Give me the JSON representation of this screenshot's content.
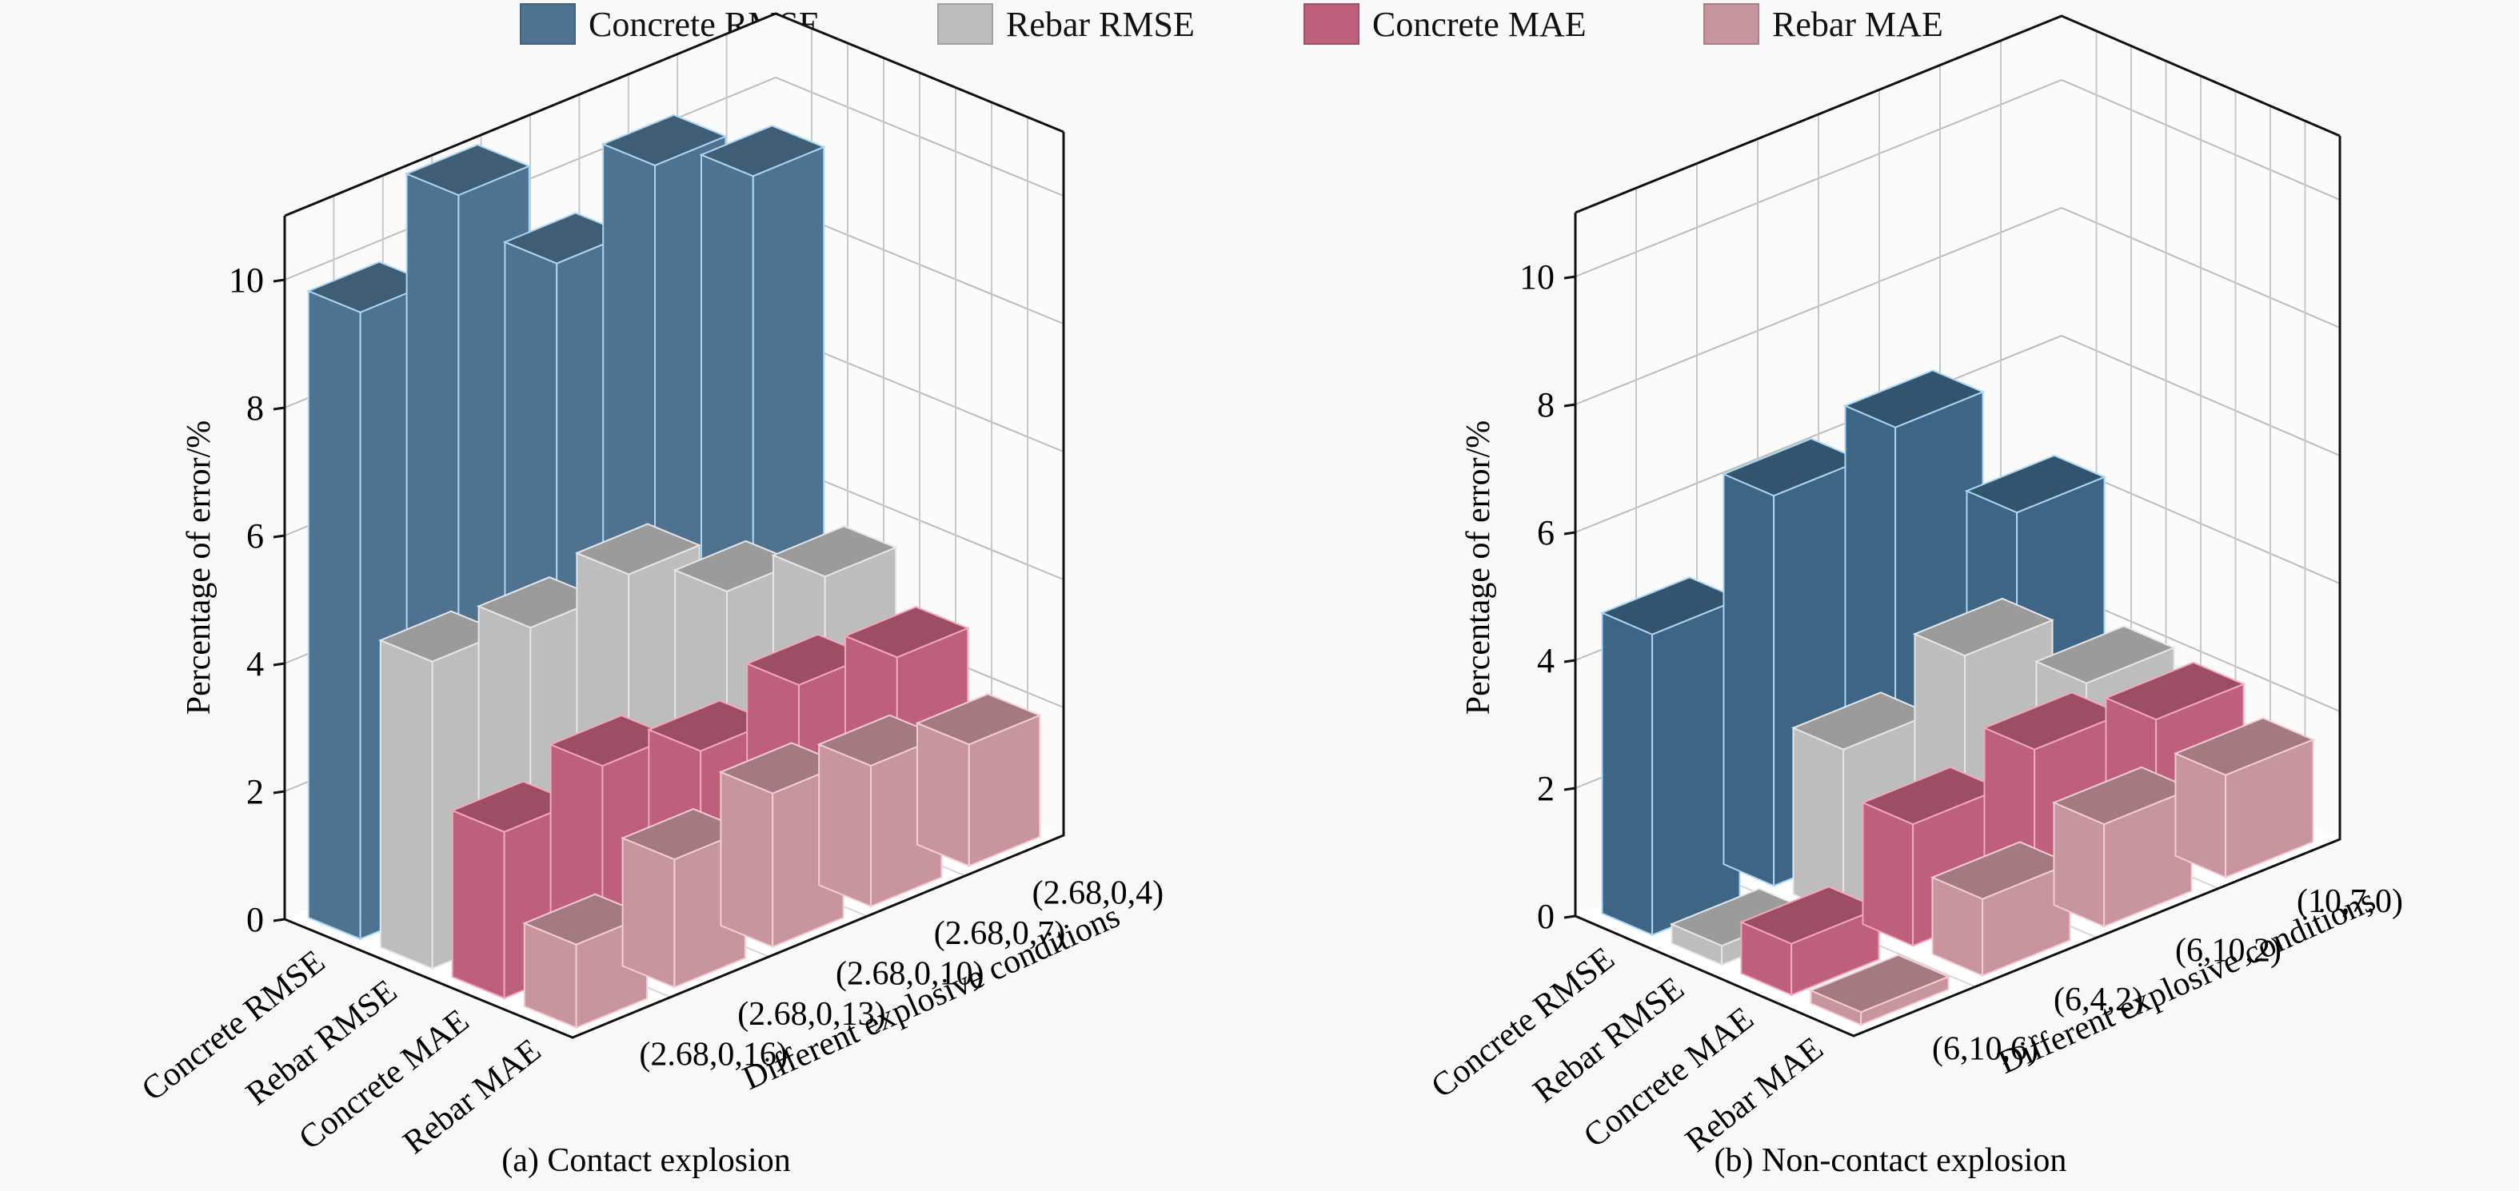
{
  "legend": [
    {
      "label": "Concrete RMSE",
      "color": "#4e7290"
    },
    {
      "label": "Rebar RMSE",
      "color": "#bdbdbd"
    },
    {
      "label": "Concrete MAE",
      "color": "#be5f7c"
    },
    {
      "label": "Rebar MAE",
      "color": "#c8959f"
    }
  ],
  "chart_data": [
    {
      "type": "bar",
      "subtype": "3d-bar",
      "title": "(a) Contact explosion",
      "ylabel": "Percentage of error/%",
      "xlabel": "Different explosive conditions",
      "ylim": [
        0,
        11
      ],
      "yticks": [
        0,
        2,
        4,
        6,
        8,
        10
      ],
      "grid": true,
      "legend_position": "top-center",
      "categories": [
        "Concrete RMSE",
        "Rebar RMSE",
        "Concrete MAE",
        "Rebar MAE"
      ],
      "conditions": [
        "(2.68,0,16)",
        "(2.68,0,13)",
        "(2.68,0,10)",
        "(2.68,0,7)",
        "(2.68,0,4)"
      ],
      "series": [
        {
          "name": "Concrete RMSE",
          "color": "#4e7290",
          "values": [
            9.8,
            11.0,
            9.3,
            10.2,
            9.4
          ]
        },
        {
          "name": "Rebar RMSE",
          "color": "#bdbdbd",
          "values": [
            4.8,
            4.7,
            4.9,
            4.0,
            3.6
          ]
        },
        {
          "name": "Concrete MAE",
          "color": "#be5f7c",
          "values": [
            2.6,
            3.0,
            2.6,
            3.0,
            2.8
          ]
        },
        {
          "name": "Rebar MAE",
          "color": "#c8959f",
          "values": [
            1.3,
            2.0,
            2.4,
            2.2,
            1.9
          ]
        }
      ]
    },
    {
      "type": "bar",
      "subtype": "3d-bar",
      "title": "(b) Non-contact explosion",
      "ylabel": "Percentage of error/%",
      "xlabel": "Different explosive conditions",
      "ylim": [
        0,
        11
      ],
      "yticks": [
        0,
        2,
        4,
        6,
        8,
        10
      ],
      "grid": true,
      "legend_position": "top-center",
      "categories": [
        "Concrete RMSE",
        "Rebar RMSE",
        "Concrete MAE",
        "Rebar MAE"
      ],
      "conditions": [
        "(6,10,6)",
        "(6,4,2)",
        "(6,10,2)",
        "(10,7,0)"
      ],
      "series": [
        {
          "name": "Concrete RMSE",
          "color": "#3f6585",
          "values": [
            4.7,
            6.1,
            6.4,
            4.3
          ]
        },
        {
          "name": "Rebar RMSE",
          "color": "#bdbdbd",
          "values": [
            0.3,
            2.6,
            3.3,
            2.1
          ]
        },
        {
          "name": "Concrete MAE",
          "color": "#be5f7c",
          "values": [
            0.8,
            1.9,
            2.3,
            2.0
          ]
        },
        {
          "name": "Rebar MAE",
          "color": "#c8959f",
          "values": [
            0.2,
            1.2,
            1.6,
            1.6
          ]
        }
      ]
    }
  ]
}
